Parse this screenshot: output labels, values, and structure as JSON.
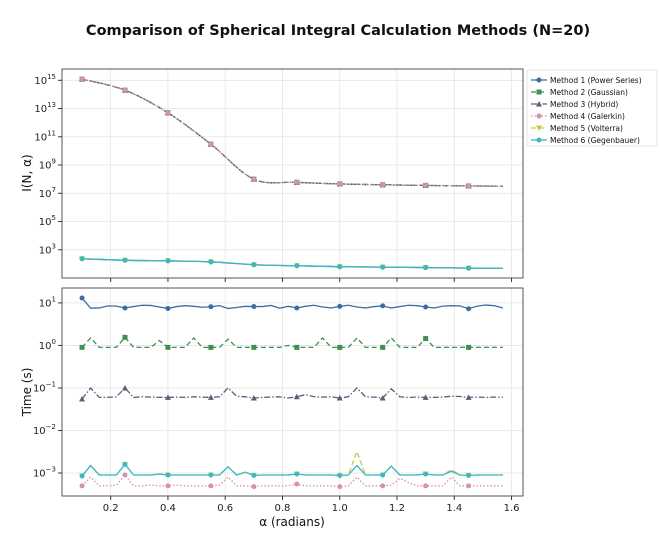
{
  "chart_data": [
    {
      "type": "line",
      "title": "Comparison of Spherical Integral Calculation Methods (N=20)",
      "xlabel": "",
      "ylabel": "I(N, α)",
      "yscale": "log",
      "xlim": [
        0.03,
        1.64
      ],
      "ylim_log10": [
        1.0,
        15.8
      ],
      "yticks": [
        "10^3",
        "10^5",
        "10^7",
        "10^9",
        "10^11",
        "10^13",
        "10^15"
      ],
      "ytick_powers": [
        3,
        5,
        7,
        9,
        11,
        13,
        15
      ],
      "grid": true,
      "x": [
        0.1,
        0.25,
        0.4,
        0.55,
        0.7,
        0.85,
        1.0,
        1.15,
        1.3,
        1.45,
        1.57
      ],
      "series": [
        {
          "name": "Method 1 (Power Series)",
          "color": "#3b6ea5",
          "dash": "",
          "marker": "circle",
          "values": [
            230,
            180,
            165,
            140,
            87,
            74,
            63,
            59,
            55,
            50,
            49
          ]
        },
        {
          "name": "Method 2 (Gaussian)",
          "color": "#3f8f4f",
          "dash": "5,3",
          "marker": "square",
          "values": [
            1200000000000000.0,
            200000000000000.0,
            5000000000000.0,
            30000000000.0,
            100000000.0,
            60000000.0,
            46000000.0,
            40000000.0,
            36000000.0,
            33000000.0,
            32000000.0
          ]
        },
        {
          "name": "Method 3 (Hybrid)",
          "color": "#5a5f73",
          "dash": "6,2,1.5,2",
          "marker": "triangle",
          "values": [
            1200000000000000.0,
            200000000000000.0,
            5000000000000.0,
            30000000000.0,
            100000000.0,
            60000000.0,
            46000000.0,
            40000000.0,
            36000000.0,
            33000000.0,
            32000000.0
          ]
        },
        {
          "name": "Method 4 (Galerkin)",
          "color": "#d691ab",
          "dash": "1.5,2",
          "marker": "circle",
          "values": [
            1200000000000000.0,
            200000000000000.0,
            5000000000000.0,
            30000000000.0,
            100000000.0,
            60000000.0,
            46000000.0,
            40000000.0,
            36000000.0,
            33000000.0,
            32000000.0
          ]
        },
        {
          "name": "Method 5 (Volterra)",
          "color": "#c9c93c",
          "dash": "5,3",
          "marker": "triangle-down",
          "values": [
            230,
            180,
            165,
            140,
            87,
            74,
            63,
            59,
            55,
            50,
            49
          ]
        },
        {
          "name": "Method 6 (Gegenbauer)",
          "color": "#3bb7c6",
          "dash": "",
          "marker": "circle",
          "values": [
            230,
            180,
            165,
            140,
            87,
            74,
            63,
            59,
            55,
            50,
            49
          ]
        }
      ]
    },
    {
      "type": "line",
      "xlabel": "α (radians)",
      "ylabel": "Time (s)",
      "yscale": "log",
      "xlim": [
        0.03,
        1.64
      ],
      "ylim_log10": [
        -3.54,
        1.35
      ],
      "xticks": [
        "0.2",
        "0.4",
        "0.6",
        "0.8",
        "1.0",
        "1.2",
        "1.4",
        "1.6"
      ],
      "xtick_values": [
        0.2,
        0.4,
        0.6,
        0.8,
        1.0,
        1.2,
        1.4,
        1.6
      ],
      "yticks": [
        "10^-3",
        "10^-2",
        "10^-1",
        "10^0",
        "10^1"
      ],
      "ytick_powers": [
        -3,
        -2,
        -1,
        0,
        1
      ],
      "grid": true,
      "x_start": 0.1,
      "x_step": 0.03,
      "marker_every": 5,
      "series": [
        {
          "name": "Method 1 (Power Series)",
          "values": [
            13,
            7.5,
            7.6,
            8.5,
            8.4,
            7.6,
            8.2,
            8.8,
            8.7,
            8.0,
            7.4,
            8.2,
            8.6,
            8.3,
            7.9,
            8.1,
            8.6,
            7.4,
            7.8,
            8.3,
            8.2,
            8.2,
            8.7,
            7.5,
            8.3,
            7.6,
            8.3,
            8.8,
            8.0,
            7.6,
            8.3,
            8.8,
            8.0,
            7.6,
            8.2,
            8.5,
            7.6,
            8.2,
            8.8,
            8.6,
            8.0,
            7.6,
            8.4,
            8.6,
            8.5,
            7.3,
            8.4,
            8.9,
            8.6,
            7.6
          ]
        },
        {
          "name": "Method 2 (Gaussian)",
          "values": [
            0.9,
            1.5,
            0.9,
            0.9,
            0.9,
            1.55,
            0.9,
            0.9,
            0.9,
            1.3,
            0.9,
            0.9,
            0.9,
            1.5,
            0.9,
            0.9,
            0.9,
            1.4,
            0.9,
            0.9,
            0.9,
            0.9,
            0.9,
            0.9,
            1.0,
            0.9,
            0.9,
            0.9,
            1.5,
            0.9,
            0.9,
            0.9,
            1.5,
            0.9,
            0.9,
            0.9,
            1.5,
            0.9,
            0.9,
            0.9,
            1.45,
            0.9,
            0.9,
            0.9,
            0.9,
            0.9,
            0.9,
            0.9,
            0.9,
            0.9
          ]
        },
        {
          "name": "Method 3 (Hybrid)",
          "values": [
            0.055,
            0.1,
            0.06,
            0.06,
            0.062,
            0.1,
            0.06,
            0.062,
            0.061,
            0.06,
            0.06,
            0.061,
            0.06,
            0.062,
            0.061,
            0.06,
            0.062,
            0.1,
            0.064,
            0.062,
            0.058,
            0.06,
            0.061,
            0.062,
            0.058,
            0.062,
            0.07,
            0.062,
            0.061,
            0.062,
            0.058,
            0.062,
            0.1,
            0.062,
            0.061,
            0.058,
            0.095,
            0.062,
            0.06,
            0.061,
            0.06,
            0.06,
            0.061,
            0.064,
            0.063,
            0.06,
            0.061,
            0.06,
            0.061,
            0.061
          ]
        },
        {
          "name": "Method 4 (Galerkin)",
          "values": [
            0.0005,
            0.0008,
            0.0005,
            0.0005,
            0.00052,
            0.0009,
            0.0005,
            0.0005,
            0.00052,
            0.0005,
            0.0005,
            0.00052,
            0.0005,
            0.0005,
            0.0005,
            0.0005,
            0.00052,
            0.0008,
            0.0005,
            0.0005,
            0.00048,
            0.0005,
            0.0005,
            0.0005,
            0.0005,
            0.00055,
            0.0005,
            0.0005,
            0.0005,
            0.0005,
            0.00048,
            0.0005,
            0.0008,
            0.0005,
            0.0005,
            0.0005,
            0.00052,
            0.00075,
            0.0006,
            0.0005,
            0.0005,
            0.0005,
            0.0005,
            0.0008,
            0.0005,
            0.0005,
            0.0005,
            0.0005,
            0.0005,
            0.0005
          ]
        },
        {
          "name": "Method 5 (Volterra)",
          "values": [
            0.00085,
            0.0015,
            0.0009,
            0.0009,
            0.0009,
            0.0016,
            0.0009,
            0.0009,
            0.0009,
            0.00095,
            0.0009,
            0.0009,
            0.0009,
            0.0009,
            0.0009,
            0.0009,
            0.0009,
            0.0014,
            0.0009,
            0.00105,
            0.00088,
            0.0009,
            0.0009,
            0.0009,
            0.0009,
            0.00095,
            0.0009,
            0.0009,
            0.0009,
            0.0009,
            0.00085,
            0.0009,
            0.0032,
            0.0009,
            0.0009,
            0.0009,
            0.00145,
            0.0009,
            0.0009,
            0.0009,
            0.00095,
            0.0009,
            0.0009,
            0.0012,
            0.0009,
            0.00088,
            0.0009,
            0.0009,
            0.0009,
            0.0009
          ]
        },
        {
          "name": "Method 6 (Gegenbauer)",
          "values": [
            0.00085,
            0.0015,
            0.0009,
            0.0009,
            0.0009,
            0.0016,
            0.0009,
            0.0009,
            0.0009,
            0.00095,
            0.0009,
            0.0009,
            0.0009,
            0.0009,
            0.0009,
            0.0009,
            0.0009,
            0.0014,
            0.0009,
            0.00105,
            0.00088,
            0.0009,
            0.0009,
            0.0009,
            0.0009,
            0.00095,
            0.0009,
            0.0009,
            0.0009,
            0.0009,
            0.00088,
            0.0009,
            0.0015,
            0.0009,
            0.0009,
            0.0009,
            0.00145,
            0.0009,
            0.0009,
            0.0009,
            0.00095,
            0.0009,
            0.0009,
            0.0011,
            0.0009,
            0.00088,
            0.0009,
            0.0009,
            0.0009,
            0.0009
          ]
        }
      ]
    }
  ],
  "legend": {
    "placement": "right"
  }
}
